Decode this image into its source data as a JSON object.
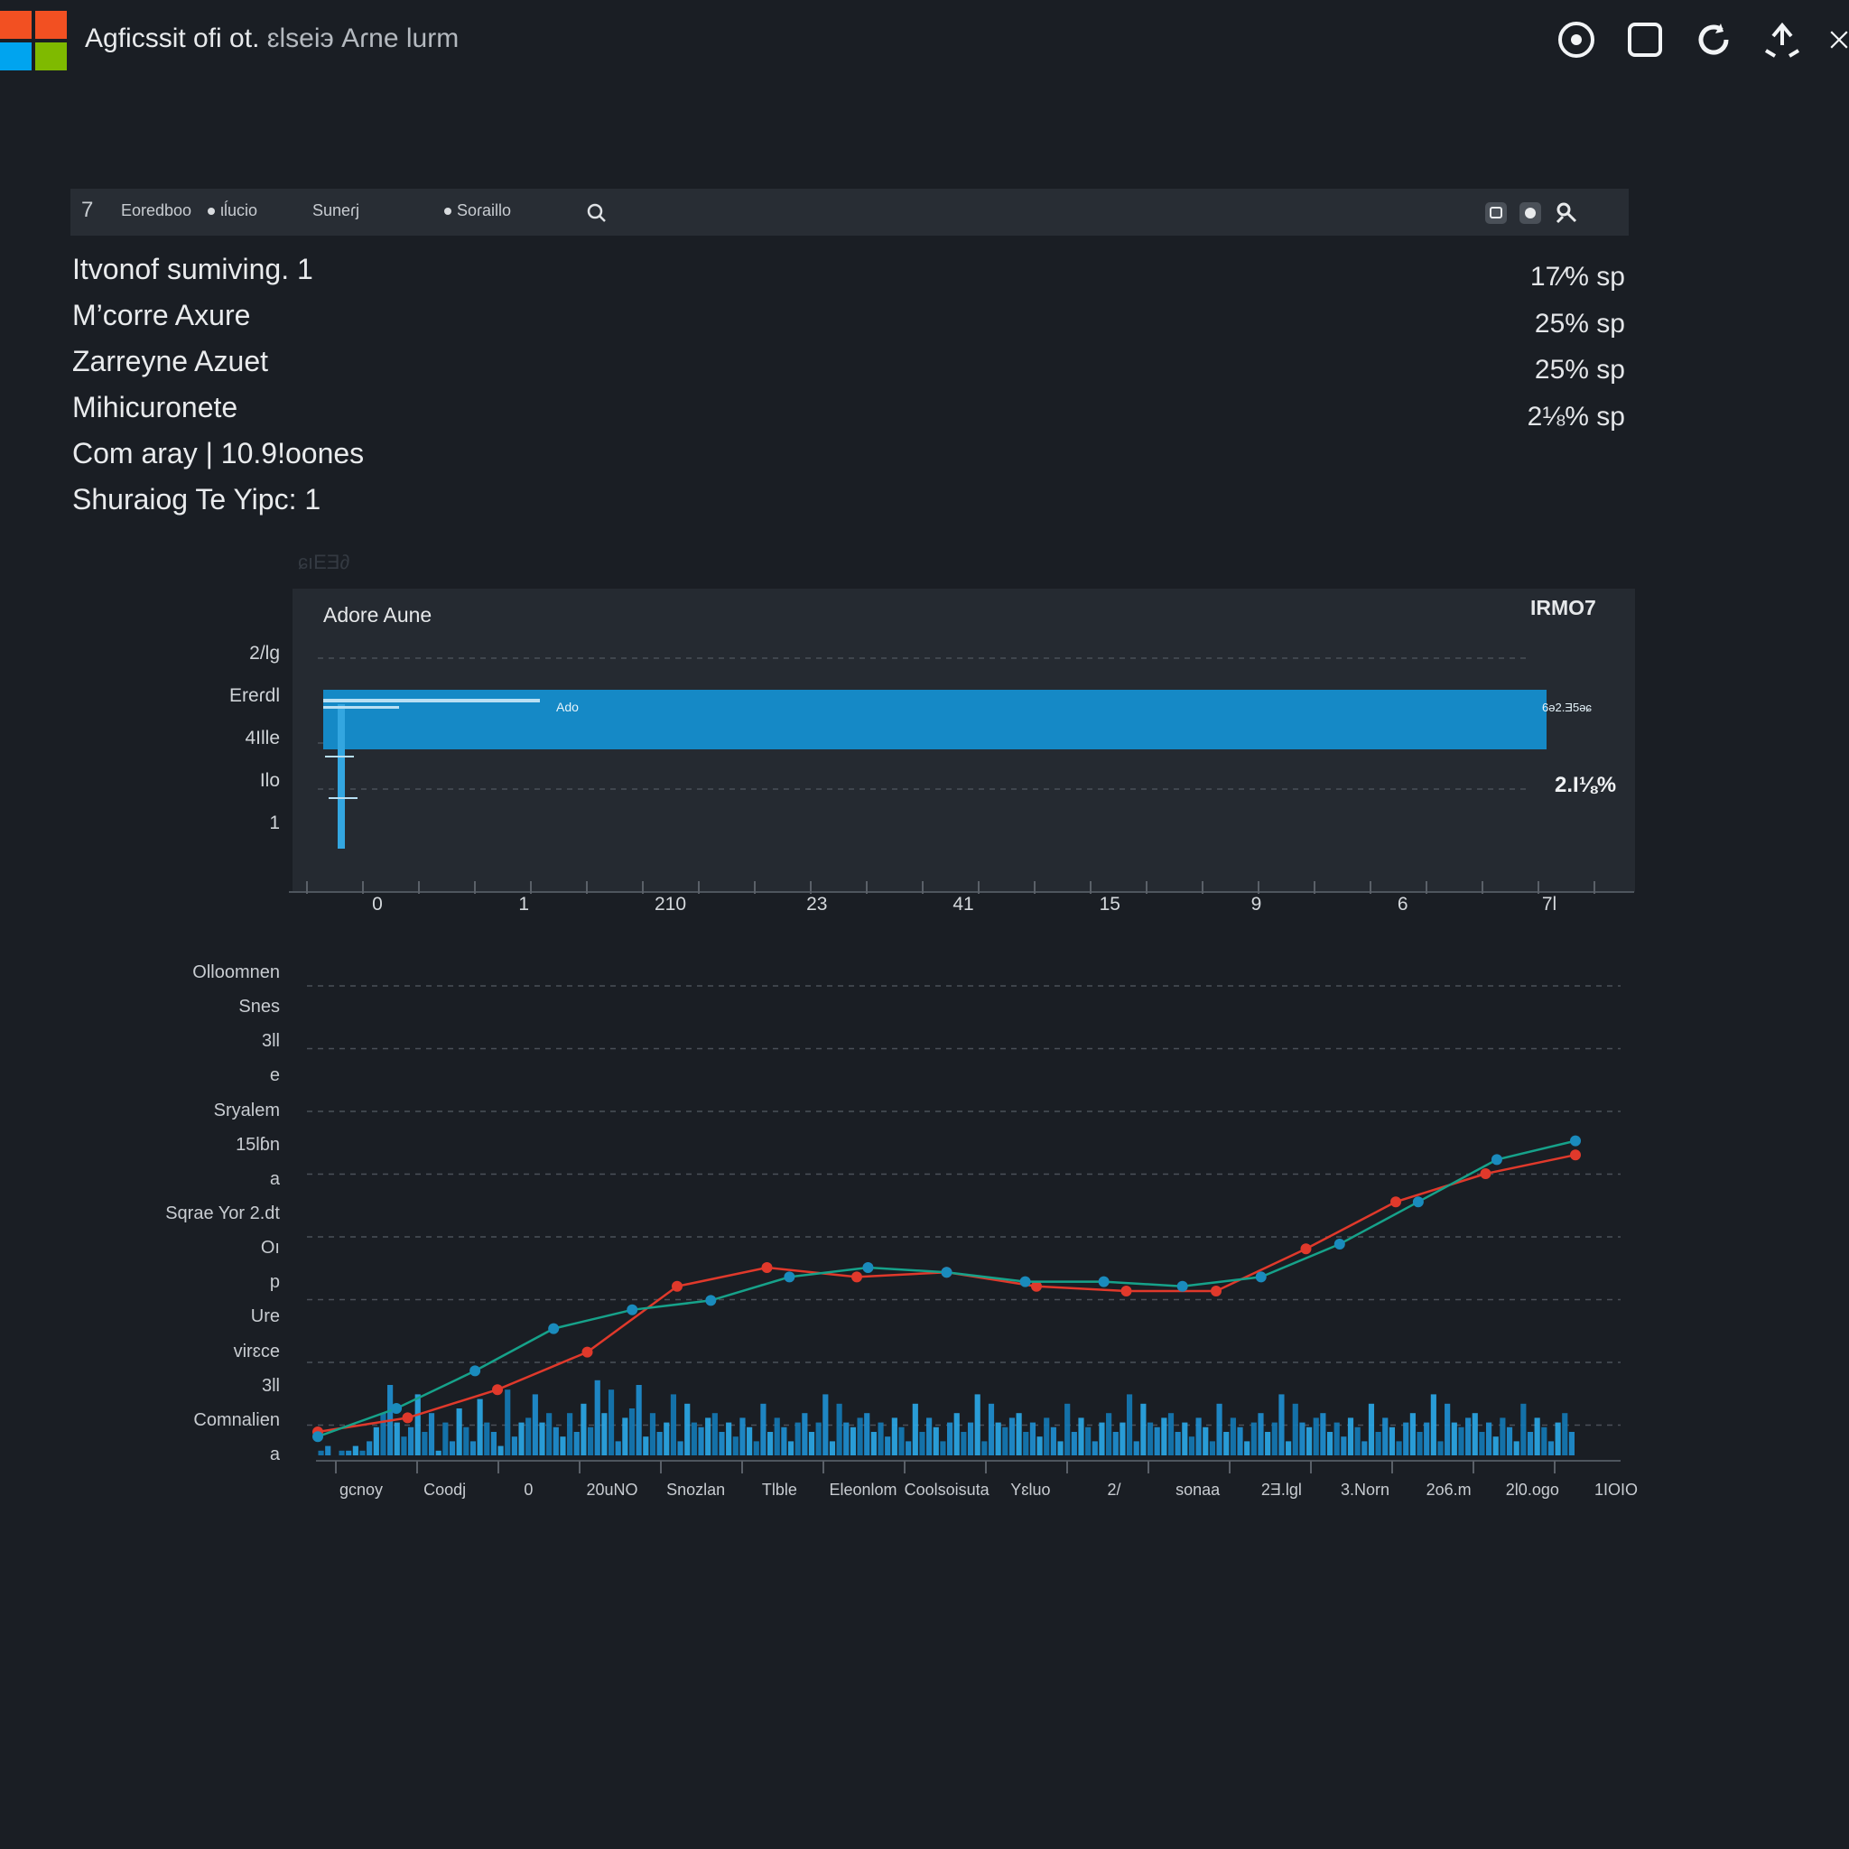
{
  "window": {
    "title": "Aɡficssit ofi ot.",
    "title_suffix": "ɛlseiэ Aɾne lurm",
    "controls": [
      {
        "name": "record-icon"
      },
      {
        "name": "stop-icon"
      },
      {
        "name": "refresh-icon"
      },
      {
        "name": "share-icon"
      },
      {
        "name": "close-icon"
      }
    ]
  },
  "toolbar": {
    "back_glyph": "7",
    "items": [
      "Eoredboo",
      "ιĺucio",
      "Suneɾj",
      "Soɾaillo"
    ],
    "dots": [
      false,
      true,
      false,
      true
    ]
  },
  "summary": {
    "rows": [
      "Itvonof sumiving. 1",
      "M’corre Axure",
      "Zarreyne Azuet",
      "Mihicuronete",
      "Com aray | 10.9!oones",
      "Shuraiog Te Yipc: 1"
    ],
    "values": [
      "17⁄% sp",
      "25% sp",
      "25% sp",
      "2⅛% sp"
    ]
  },
  "faint_label": "ɕıEƎ∂",
  "chart_data": [
    {
      "type": "bar",
      "orientation": "horizontal",
      "title": "Adore Aune",
      "corner_label": "IRMO7",
      "pct_label": "2.I⅛%",
      "categories": [
        "2/lg",
        "Ereɾdl",
        "4Ille",
        "Ilo",
        "1"
      ],
      "x_ticks": [
        "0",
        "1",
        "210",
        "23",
        "41",
        "15",
        "9",
        "6",
        "7l"
      ],
      "bars": [
        {
          "label": "Ereɾdl",
          "value": 1,
          "inner_label": "Ado",
          "end_label": "6ə2.Ǝ5ǝɕ",
          "color": "#1589c6"
        }
      ]
    },
    {
      "type": "line",
      "y_labels": [
        "Olloomnen",
        "Snes",
        "3ll",
        "e",
        "Sryalem",
        "15lɓn",
        "a",
        "Sqrae Yor 2.dt",
        "Oı",
        "p",
        "Ure",
        "virɛce",
        "3ll",
        "Comnalien",
        "a"
      ],
      "x_labels": [
        "gcnoy",
        "Coodj",
        "0",
        "20uNO",
        "Snozlan",
        "Tlble",
        "Eleonlom",
        "Coolsoisuta",
        "Yɛluo",
        "2/",
        "sonaa",
        "2Ǝ.lgl",
        "3.Norn",
        "2o6.m",
        "2Ɩ0.ogo",
        "1IOIO"
      ],
      "y_range": [
        0,
        100
      ],
      "series": [
        {
          "color": "#e0392b",
          "values": [
            5,
            8,
            14,
            22,
            36,
            40,
            38,
            39,
            36,
            35,
            35,
            44,
            54,
            60,
            64
          ]
        },
        {
          "color": "#16a28a",
          "values": [
            4,
            10,
            18,
            27,
            31,
            33,
            38,
            40,
            39,
            37,
            37,
            36,
            38,
            45,
            54,
            63,
            67
          ]
        },
        {
          "color": "#1e8ed0",
          "values": [
            1,
            2,
            0,
            1,
            1,
            2,
            1,
            3,
            6,
            9,
            15,
            7,
            4,
            6,
            13,
            5,
            9,
            1,
            7,
            3,
            10,
            6,
            3,
            12,
            7,
            5,
            2,
            14,
            4,
            7,
            8,
            13,
            7,
            9,
            6,
            4,
            9,
            5,
            11,
            6,
            16,
            9,
            14,
            3,
            8,
            10,
            15,
            4,
            9,
            5,
            7,
            13,
            3,
            11,
            7,
            6,
            8,
            9,
            5,
            7,
            4,
            8,
            6,
            3,
            11,
            5,
            8,
            6,
            3,
            7,
            9,
            5,
            7,
            13,
            3,
            11,
            7,
            6,
            8,
            9,
            5,
            7,
            4,
            8,
            6,
            3,
            11,
            5,
            8,
            6,
            3,
            7,
            9,
            5,
            7,
            13,
            3,
            11,
            7,
            6,
            8,
            9,
            5,
            7,
            4,
            8,
            6,
            3,
            11,
            5,
            8,
            6,
            3,
            7,
            9,
            5,
            7,
            13,
            3,
            11,
            7,
            6,
            8,
            9,
            5,
            7,
            4,
            8,
            6,
            3,
            11,
            5,
            8,
            6,
            3,
            7,
            9,
            5,
            7,
            13,
            3,
            11,
            7,
            6,
            8,
            9,
            5,
            7,
            4,
            8,
            6,
            3,
            11,
            5,
            8,
            6,
            3,
            7,
            9,
            5,
            7,
            13,
            3,
            11,
            7,
            6,
            8,
            9,
            5,
            7,
            4,
            8,
            6,
            3,
            11,
            5,
            8,
            6,
            3,
            7,
            9,
            5
          ]
        }
      ]
    }
  ]
}
